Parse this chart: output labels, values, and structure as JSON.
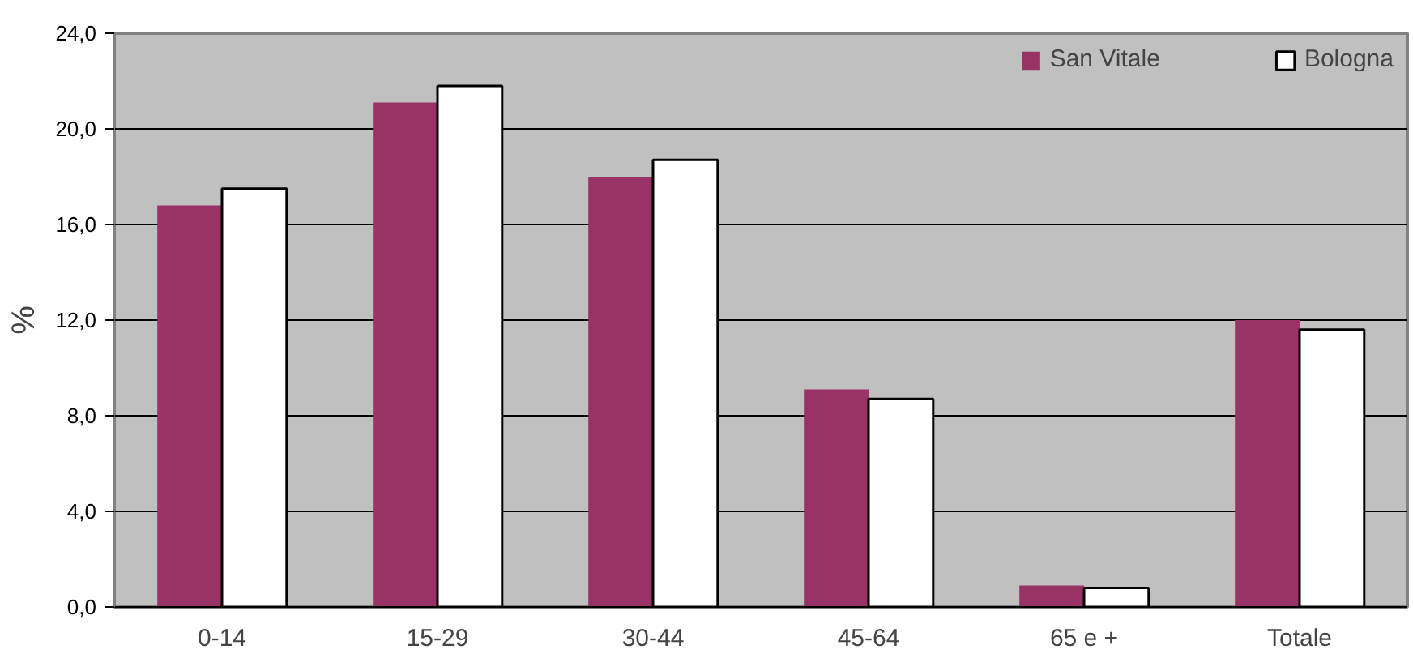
{
  "chart_data": {
    "type": "bar",
    "ylabel": "%",
    "categories": [
      "0-14",
      "15-29",
      "30-44",
      "45-64",
      "65 e +",
      "Totale"
    ],
    "series": [
      {
        "name": "San Vitale",
        "color": "#993366",
        "values": [
          16.8,
          21.1,
          18.0,
          9.1,
          0.9,
          12.0
        ]
      },
      {
        "name": "Bologna",
        "color": "#ffffff",
        "values": [
          17.5,
          21.8,
          18.7,
          8.7,
          0.8,
          11.6
        ]
      }
    ],
    "ylim": [
      0,
      24
    ],
    "yticks": [
      {
        "value": 0,
        "label": "0,0"
      },
      {
        "value": 4,
        "label": "4,0"
      },
      {
        "value": 8,
        "label": "8,0"
      },
      {
        "value": 12,
        "label": "12,0"
      },
      {
        "value": 16,
        "label": "16,0"
      },
      {
        "value": 20,
        "label": "20,0"
      },
      {
        "value": 24,
        "label": "24,0"
      }
    ],
    "grid": "y",
    "legend": "top right"
  }
}
